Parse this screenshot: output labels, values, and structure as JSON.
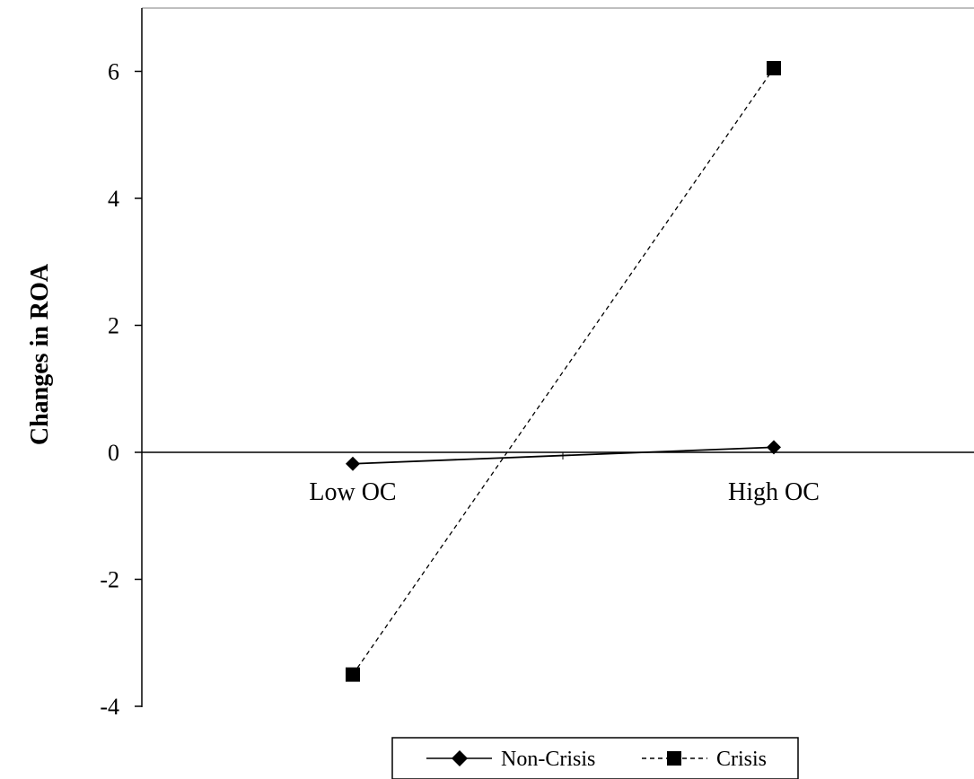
{
  "chart_data": {
    "type": "line",
    "categories": [
      "Low OC",
      "High OC"
    ],
    "series": [
      {
        "name": "Non-Crisis",
        "values": [
          -0.18,
          0.08
        ],
        "color": "#000000",
        "line_style": "solid",
        "marker": "diamond"
      },
      {
        "name": "Crisis",
        "values": [
          -3.5,
          6.05
        ],
        "color": "#000000",
        "line_style": "dashed",
        "marker": "square"
      }
    ],
    "title": "",
    "xlabel": "",
    "ylabel": "Changes in ROA",
    "ylim": [
      -4,
      7
    ],
    "yticks": [
      6,
      4,
      2,
      0,
      -2,
      -4
    ],
    "ytick_labels": [
      "6",
      "4",
      "2",
      "0",
      "-2",
      "-4"
    ],
    "grid": false,
    "legend": {
      "position": "bottom-center",
      "entries": [
        "Non-Crisis",
        "Crisis"
      ]
    }
  }
}
